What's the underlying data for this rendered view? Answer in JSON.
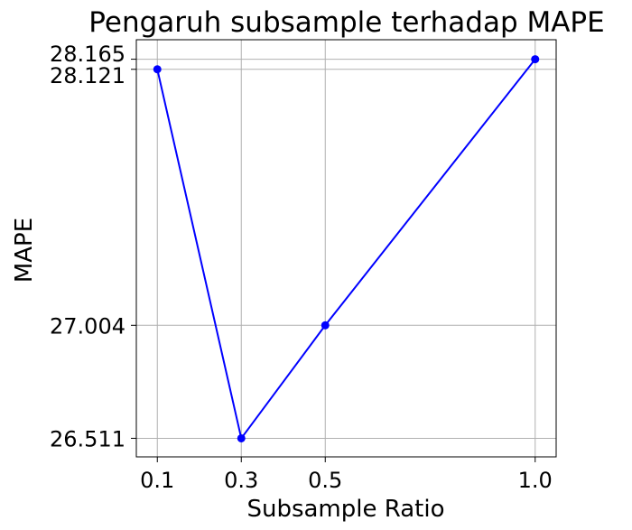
{
  "chart_data": {
    "type": "line",
    "title": "Pengaruh subsample terhadap MAPE",
    "xlabel": "Subsample Ratio",
    "ylabel": "MAPE",
    "x": [
      0.1,
      0.3,
      0.5,
      1.0
    ],
    "x_tick_labels": [
      "0.1",
      "0.3",
      "0.5",
      "1.0"
    ],
    "y_ticks": [
      26.511,
      27.004,
      28.121,
      28.165
    ],
    "y_tick_labels": [
      "26.511",
      "27.004",
      "28.121",
      "28.165"
    ],
    "series": [
      {
        "values": [
          28.121,
          26.511,
          27.004,
          28.165
        ],
        "color": "#0000ff",
        "marker": "circle"
      }
    ],
    "xlim": [
      0.05,
      1.05
    ],
    "ylim": [
      26.43,
      28.25
    ],
    "grid": true,
    "grid_color": "#b0b0b0",
    "legend": false
  }
}
